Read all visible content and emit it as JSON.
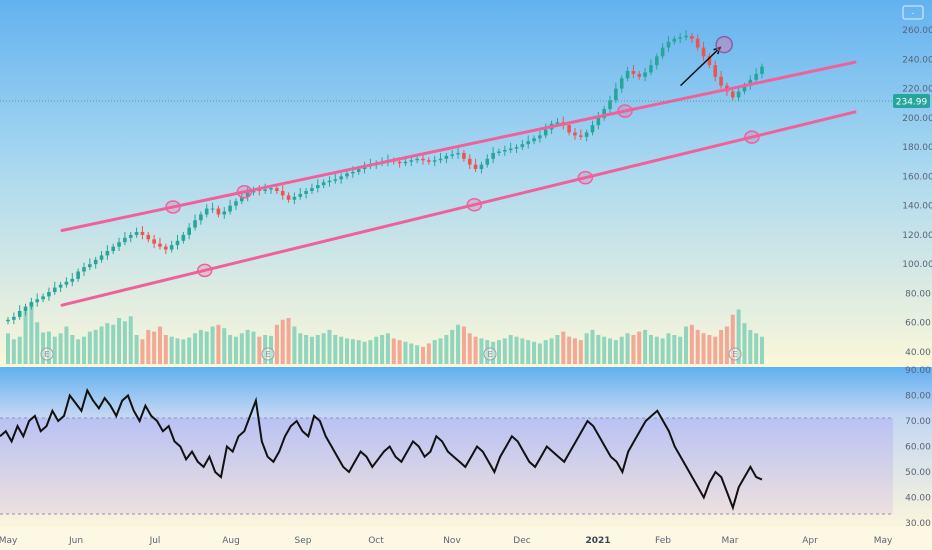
{
  "chart_data": [
    {
      "type": "candlestick",
      "title": "",
      "ylim": [
        30,
        240
      ],
      "y_ticks": [
        "40.00",
        "60.00",
        "80.00",
        "100.00",
        "120.00",
        "140.00",
        "160.00",
        "180.00",
        "200.00",
        "220.00",
        "240.00",
        "260.00"
      ],
      "x_ticks": [
        "May",
        "Jun",
        "Jul",
        "Aug",
        "Sep",
        "Oct",
        "Nov",
        "Dec",
        "2021",
        "Feb",
        "Mar",
        "Apr",
        "May"
      ],
      "last_price": "234.99",
      "earnings_marker": "E",
      "top_badge": "-",
      "close_series": [
        62,
        64,
        68,
        71,
        74,
        76,
        78,
        81,
        84,
        86,
        88,
        90,
        95,
        98,
        100,
        103,
        106,
        109,
        112,
        115,
        118,
        120,
        122,
        120,
        117,
        114,
        112,
        110,
        113,
        116,
        120,
        125,
        130,
        134,
        138,
        138,
        134,
        136,
        140,
        143,
        146,
        149,
        151,
        150,
        151,
        152,
        150,
        147,
        144,
        146,
        148,
        150,
        152,
        154,
        156,
        157,
        158,
        160,
        162,
        163,
        165,
        167,
        168,
        169,
        170,
        171,
        170,
        169,
        170,
        171,
        172,
        171,
        170,
        171,
        172,
        174,
        175,
        176,
        172,
        168,
        165,
        168,
        172,
        176,
        177,
        178,
        179,
        180,
        182,
        184,
        186,
        188,
        192,
        196,
        197,
        195,
        190,
        188,
        187,
        190,
        195,
        200,
        206,
        212,
        220,
        227,
        232,
        230,
        228,
        231,
        236,
        242,
        248,
        252,
        254,
        255,
        256,
        254,
        248,
        242,
        236,
        228,
        222,
        218,
        214,
        218,
        222,
        226,
        230,
        234.99
      ],
      "volume_series": [
        62,
        55,
        58,
        88,
        99,
        75,
        63,
        64,
        58,
        62,
        70,
        60,
        55,
        58,
        64,
        66,
        70,
        74,
        72,
        80,
        76,
        82,
        60,
        55,
        66,
        64,
        70,
        60,
        58,
        56,
        55,
        57,
        62,
        66,
        64,
        70,
        72,
        68,
        60,
        58,
        62,
        66,
        64,
        58,
        60,
        59,
        72,
        78,
        80,
        70,
        62,
        60,
        58,
        60,
        62,
        66,
        60,
        58,
        56,
        55,
        54,
        52,
        54,
        58,
        60,
        62,
        56,
        54,
        52,
        50,
        48,
        46,
        50,
        54,
        56,
        60,
        66,
        72,
        70,
        62,
        58,
        56,
        54,
        52,
        54,
        56,
        60,
        58,
        56,
        54,
        52,
        50,
        54,
        56,
        60,
        64,
        58,
        56,
        54,
        62,
        66,
        60,
        58,
        56,
        54,
        58,
        62,
        60,
        64,
        66,
        60,
        58,
        56,
        62,
        60,
        58,
        70,
        72,
        66,
        62,
        60,
        58,
        66,
        70,
        84,
        90,
        74,
        66,
        62,
        58
      ],
      "channel_upper": [
        [
          0.0,
          123
        ],
        [
          1.0,
          238
        ]
      ],
      "channel_lower": [
        [
          0.0,
          72
        ],
        [
          1.0,
          204
        ]
      ],
      "target_arrow": {
        "from": [
          0.78,
          222
        ],
        "to": [
          0.83,
          248
        ]
      }
    },
    {
      "type": "line",
      "title": "",
      "ylim": [
        30,
        90
      ],
      "y_ticks": [
        "30.00",
        "40.00",
        "50.00",
        "60.00",
        "70.00",
        "80.00",
        "90.00"
      ],
      "rsi_band": [
        40,
        70
      ],
      "values": [
        64,
        66,
        62,
        68,
        64,
        70,
        72,
        66,
        68,
        74,
        70,
        72,
        80,
        77,
        74,
        82,
        78,
        75,
        79,
        76,
        72,
        78,
        80,
        74,
        70,
        76,
        72,
        70,
        66,
        68,
        62,
        60,
        55,
        58,
        54,
        52,
        56,
        50,
        48,
        60,
        58,
        64,
        66,
        72,
        78,
        62,
        56,
        54,
        58,
        64,
        68,
        70,
        66,
        64,
        72,
        70,
        64,
        60,
        56,
        52,
        50,
        54,
        58,
        56,
        52,
        55,
        58,
        60,
        56,
        54,
        58,
        62,
        60,
        56,
        58,
        64,
        62,
        58,
        56,
        54,
        52,
        56,
        60,
        58,
        54,
        50,
        56,
        60,
        64,
        62,
        58,
        54,
        52,
        56,
        60,
        58,
        56,
        54,
        58,
        62,
        66,
        70,
        68,
        64,
        60,
        56,
        54,
        50,
        58,
        62,
        66,
        70,
        72,
        74,
        70,
        66,
        60,
        56,
        52,
        48,
        44,
        40,
        46,
        50,
        48,
        42,
        36,
        44,
        48,
        52,
        48,
        47
      ]
    }
  ]
}
